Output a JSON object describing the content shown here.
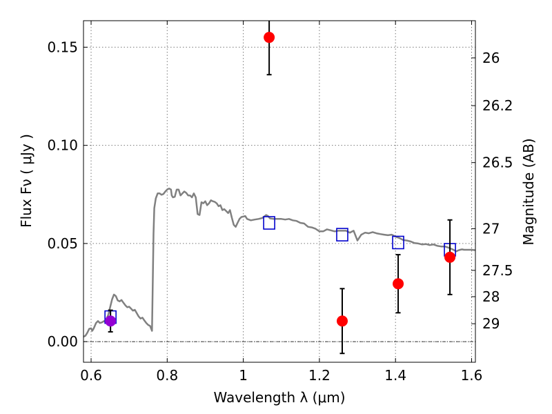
{
  "chart_data": {
    "type": "scatter",
    "xlabel": "Wavelength  λ (μm)",
    "ylabel": "Flux  Fν  ( μJy )",
    "y2label": "Magnitude (AB)",
    "xlim": [
      0.58,
      1.61
    ],
    "ylim": [
      -0.0105,
      0.1635
    ],
    "grid": true,
    "x_ticks": [
      0.6,
      0.8,
      1.0,
      1.2,
      1.4,
      1.6
    ],
    "x_tick_labels": [
      "0.6",
      "0.8",
      "1",
      "1.2",
      "1.4",
      "1.6"
    ],
    "y_ticks": [
      0.0,
      0.05,
      0.1,
      0.15
    ],
    "y_tick_labels": [
      "0.00",
      "0.05",
      "0.10",
      "0.15"
    ],
    "mag_ticks": [
      26,
      26.2,
      26.5,
      27,
      27.5,
      28,
      29
    ],
    "mag_tick_labels": [
      "26",
      "26.2",
      "26.5",
      "27",
      "27.5",
      "28",
      "29"
    ],
    "colors": {
      "model": "#808080",
      "observed": "#ff0000",
      "low_snr_point": "#9400d3",
      "synthetic": "#0000cc",
      "errorbar": "#000000",
      "grid": "#777777"
    },
    "series": [
      {
        "kind": "model_sed",
        "points": [
          [
            0.58,
            0.0025
          ],
          [
            0.585,
            0.003
          ],
          [
            0.59,
            0.0045
          ],
          [
            0.595,
            0.0065
          ],
          [
            0.6,
            0.0068
          ],
          [
            0.603,
            0.0055
          ],
          [
            0.607,
            0.0068
          ],
          [
            0.613,
            0.0095
          ],
          [
            0.618,
            0.0105
          ],
          [
            0.623,
            0.0095
          ],
          [
            0.628,
            0.0098
          ],
          [
            0.634,
            0.0105
          ],
          [
            0.637,
            0.0103
          ],
          [
            0.64,
            0.0115
          ],
          [
            0.645,
            0.0135
          ],
          [
            0.65,
            0.0175
          ],
          [
            0.655,
            0.0215
          ],
          [
            0.66,
            0.024
          ],
          [
            0.665,
            0.0232
          ],
          [
            0.67,
            0.021
          ],
          [
            0.675,
            0.0205
          ],
          [
            0.68,
            0.0212
          ],
          [
            0.685,
            0.0198
          ],
          [
            0.69,
            0.0185
          ],
          [
            0.695,
            0.0175
          ],
          [
            0.7,
            0.0178
          ],
          [
            0.705,
            0.0168
          ],
          [
            0.71,
            0.0158
          ],
          [
            0.715,
            0.0162
          ],
          [
            0.72,
            0.0145
          ],
          [
            0.725,
            0.0128
          ],
          [
            0.73,
            0.0118
          ],
          [
            0.735,
            0.0122
          ],
          [
            0.74,
            0.0108
          ],
          [
            0.745,
            0.0095
          ],
          [
            0.75,
            0.0085
          ],
          [
            0.755,
            0.008
          ],
          [
            0.758,
            0.0065
          ],
          [
            0.76,
            0.0055
          ],
          [
            0.762,
            0.03
          ],
          [
            0.764,
            0.055
          ],
          [
            0.766,
            0.068
          ],
          [
            0.77,
            0.073
          ],
          [
            0.775,
            0.0755
          ],
          [
            0.78,
            0.0755
          ],
          [
            0.785,
            0.0748
          ],
          [
            0.79,
            0.0752
          ],
          [
            0.795,
            0.0765
          ],
          [
            0.8,
            0.0775
          ],
          [
            0.805,
            0.078
          ],
          [
            0.81,
            0.0775
          ],
          [
            0.812,
            0.0745
          ],
          [
            0.815,
            0.0735
          ],
          [
            0.82,
            0.0738
          ],
          [
            0.825,
            0.0775
          ],
          [
            0.83,
            0.0775
          ],
          [
            0.835,
            0.0745
          ],
          [
            0.84,
            0.0755
          ],
          [
            0.845,
            0.0765
          ],
          [
            0.85,
            0.0758
          ],
          [
            0.855,
            0.0745
          ],
          [
            0.86,
            0.0745
          ],
          [
            0.865,
            0.0735
          ],
          [
            0.87,
            0.0755
          ],
          [
            0.875,
            0.0735
          ],
          [
            0.88,
            0.065
          ],
          [
            0.885,
            0.0645
          ],
          [
            0.89,
            0.071
          ],
          [
            0.895,
            0.0705
          ],
          [
            0.9,
            0.0715
          ],
          [
            0.905,
            0.0695
          ],
          [
            0.91,
            0.0705
          ],
          [
            0.915,
            0.072
          ],
          [
            0.92,
            0.0715
          ],
          [
            0.925,
            0.0712
          ],
          [
            0.93,
            0.0705
          ],
          [
            0.935,
            0.069
          ],
          [
            0.94,
            0.0695
          ],
          [
            0.945,
            0.067
          ],
          [
            0.95,
            0.0675
          ],
          [
            0.955,
            0.0665
          ],
          [
            0.96,
            0.0655
          ],
          [
            0.965,
            0.067
          ],
          [
            0.97,
            0.063
          ],
          [
            0.975,
            0.0595
          ],
          [
            0.98,
            0.0585
          ],
          [
            0.985,
            0.0605
          ],
          [
            0.99,
            0.0625
          ],
          [
            0.995,
            0.0635
          ],
          [
            1.0,
            0.0637
          ],
          [
            1.005,
            0.064
          ],
          [
            1.01,
            0.0625
          ],
          [
            1.02,
            0.0618
          ],
          [
            1.03,
            0.0622
          ],
          [
            1.04,
            0.0625
          ],
          [
            1.05,
            0.063
          ],
          [
            1.06,
            0.0645
          ],
          [
            1.065,
            0.064
          ],
          [
            1.07,
            0.0628
          ],
          [
            1.08,
            0.0625
          ],
          [
            1.09,
            0.0625
          ],
          [
            1.1,
            0.0625
          ],
          [
            1.11,
            0.0622
          ],
          [
            1.12,
            0.0625
          ],
          [
            1.13,
            0.0618
          ],
          [
            1.14,
            0.0615
          ],
          [
            1.15,
            0.0605
          ],
          [
            1.16,
            0.0602
          ],
          [
            1.17,
            0.0585
          ],
          [
            1.18,
            0.0582
          ],
          [
            1.19,
            0.0575
          ],
          [
            1.2,
            0.0562
          ],
          [
            1.21,
            0.0562
          ],
          [
            1.22,
            0.0572
          ],
          [
            1.23,
            0.0567
          ],
          [
            1.24,
            0.0562
          ],
          [
            1.25,
            0.0565
          ],
          [
            1.26,
            0.0565
          ],
          [
            1.27,
            0.0565
          ],
          [
            1.28,
            0.0555
          ],
          [
            1.29,
            0.0565
          ],
          [
            1.3,
            0.0515
          ],
          [
            1.31,
            0.0545
          ],
          [
            1.32,
            0.0555
          ],
          [
            1.33,
            0.0552
          ],
          [
            1.34,
            0.0558
          ],
          [
            1.35,
            0.0552
          ],
          [
            1.36,
            0.0548
          ],
          [
            1.37,
            0.0545
          ],
          [
            1.38,
            0.0542
          ],
          [
            1.39,
            0.0545
          ],
          [
            1.4,
            0.0535
          ],
          [
            1.41,
            0.0528
          ],
          [
            1.42,
            0.0518
          ],
          [
            1.43,
            0.0515
          ],
          [
            1.44,
            0.051
          ],
          [
            1.45,
            0.0502
          ],
          [
            1.46,
            0.05
          ],
          [
            1.47,
            0.0495
          ],
          [
            1.48,
            0.0497
          ],
          [
            1.49,
            0.0492
          ],
          [
            1.5,
            0.0495
          ],
          [
            1.51,
            0.0488
          ],
          [
            1.52,
            0.0485
          ],
          [
            1.53,
            0.0485
          ],
          [
            1.54,
            0.0478
          ],
          [
            1.55,
            0.047
          ],
          [
            1.56,
            0.046
          ],
          [
            1.565,
            0.0465
          ],
          [
            1.57,
            0.0468
          ],
          [
            1.575,
            0.047
          ],
          [
            1.58,
            0.0468
          ],
          [
            1.59,
            0.0468
          ],
          [
            1.6,
            0.0468
          ],
          [
            1.61,
            0.0466
          ]
        ]
      },
      {
        "kind": "synthetic_photometry",
        "points": [
          [
            0.651,
            0.0125
          ],
          [
            1.068,
            0.0605
          ],
          [
            1.26,
            0.0545
          ],
          [
            1.407,
            0.0505
          ],
          [
            1.543,
            0.0468
          ]
        ]
      },
      {
        "kind": "observed_photometry",
        "points": [
          {
            "x": 0.651,
            "y": 0.0105,
            "err": 0.0055,
            "low_snr": true
          },
          {
            "x": 1.068,
            "y": 0.155,
            "err": 0.019
          },
          {
            "x": 1.26,
            "y": 0.0105,
            "err": 0.0165
          },
          {
            "x": 1.407,
            "y": 0.0295,
            "err": 0.0148
          },
          {
            "x": 1.543,
            "y": 0.043,
            "err": 0.019
          }
        ]
      }
    ]
  }
}
